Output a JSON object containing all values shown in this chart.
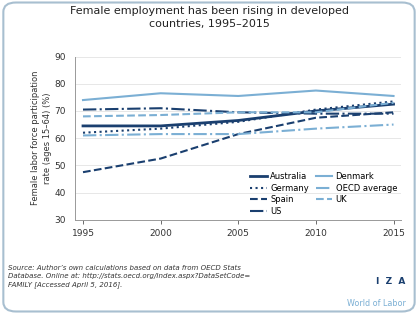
{
  "title": "Female employment has been rising in developed\ncountries, 1995–2015",
  "ylabel": "Female labor force participation\nrate (ages 15–64) (%)",
  "years": [
    1995,
    2000,
    2005,
    2010,
    2015
  ],
  "series": {
    "Australia": [
      64.5,
      64.5,
      66.5,
      70.0,
      72.5
    ],
    "Germany": [
      62.0,
      63.5,
      66.0,
      70.5,
      73.5
    ],
    "Spain": [
      47.5,
      52.5,
      61.5,
      67.5,
      69.5
    ],
    "US": [
      70.5,
      71.0,
      69.5,
      69.0,
      69.0
    ],
    "Denmark": [
      74.0,
      76.5,
      75.5,
      77.5,
      75.5
    ],
    "OECD average": [
      61.0,
      61.5,
      61.5,
      63.5,
      65.0
    ],
    "UK": [
      68.0,
      68.5,
      69.5,
      69.5,
      73.0
    ]
  },
  "line_styles": {
    "Australia": {
      "color": "#1a3f6f",
      "linestyle": "-",
      "linewidth": 2.0
    },
    "Germany": {
      "color": "#1a3f6f",
      "linestyle": ":",
      "linewidth": 1.5
    },
    "Spain": {
      "color": "#1a3f6f",
      "linestyle": "--",
      "linewidth": 1.5
    },
    "US": {
      "color": "#1a3f6f",
      "linestyle": "-.",
      "linewidth": 1.5
    },
    "Denmark": {
      "color": "#7bafd4",
      "linestyle": "-",
      "linewidth": 1.5
    },
    "OECD average": {
      "color": "#7bafd4",
      "linestyle": "-.",
      "linewidth": 1.5
    },
    "UK": {
      "color": "#7bafd4",
      "linestyle": "--",
      "linewidth": 1.5
    }
  },
  "ylim": [
    30,
    90
  ],
  "yticks": [
    30,
    40,
    50,
    60,
    70,
    80,
    90
  ],
  "xlim": [
    1994.5,
    2015.5
  ],
  "xticks": [
    1995,
    2000,
    2005,
    2010,
    2015
  ],
  "source_text": "Source: Author’s own calculations based on data from OECD Stats\nDatabase. Online at: http://stats.oecd.org/Index.aspx?DataSetCode=\nFAMILY [Accessed April 5, 2016].",
  "bg_color": "#ffffff",
  "border_color": "#a8bfd0",
  "dark_blue": "#1a3f6f",
  "light_blue": "#7bafd4"
}
